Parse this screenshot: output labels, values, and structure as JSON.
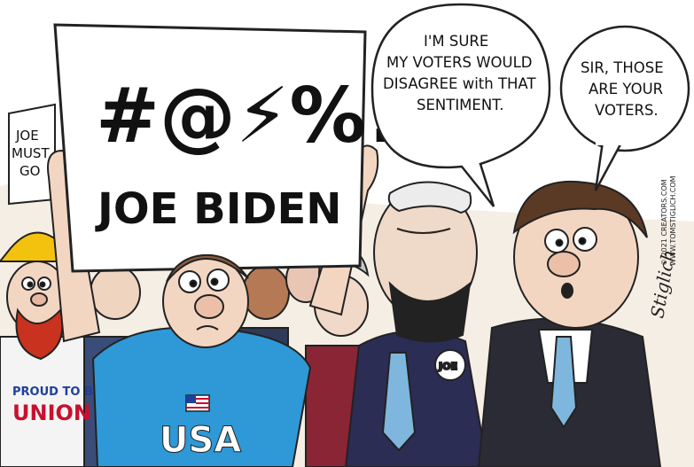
{
  "sign_main": {
    "symbols": "#@⚡%!",
    "name": "JOE BIDEN"
  },
  "sign_left": {
    "line1": "JOE",
    "line2": "MUST",
    "line3": "GO"
  },
  "bubble_biden": {
    "line1": "I'M SURE",
    "line2": "MY VOTERS WOULD",
    "line3": "DISAGREE with THAT",
    "line4": "SENTIMENT."
  },
  "bubble_aide": {
    "line1": "SIR, THOSE",
    "line2": "ARE YOUR",
    "line3": "VOTERS."
  },
  "shirt_text": "USA",
  "union_sign": {
    "line1": "PROUD TO BE",
    "line2": "UNION"
  },
  "lapel_pin": "JOE",
  "signature": "Stiglich",
  "credits": {
    "line1": "© 2021 CREATORS.COM",
    "line2": "WWW.TOMSTIGLICH.COM"
  },
  "colors": {
    "shirt_blue": "#2f98d6",
    "skin": "#f3d6c2",
    "suit_navy": "#2c2d54",
    "suit_dark": "#2a2b35",
    "tie_blue": "#7fb6dd",
    "hardhat_yellow": "#f2c20f",
    "beard_red": "#c8321f",
    "union_red": "#c8102e",
    "union_blue": "#1f3f9a",
    "hair_brown": "#5a3a25"
  }
}
